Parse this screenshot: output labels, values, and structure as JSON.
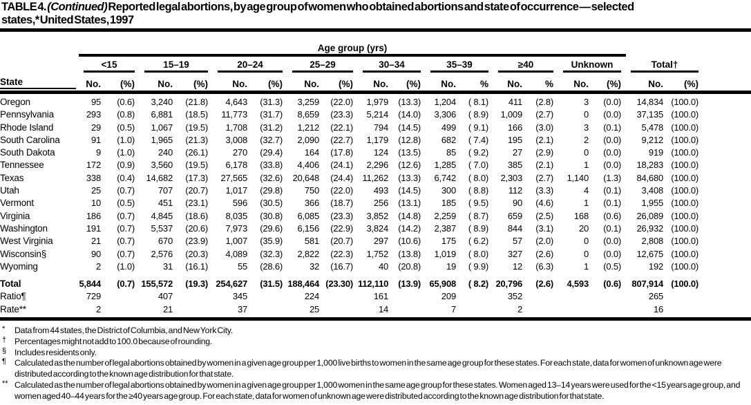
{
  "title": {
    "prefix": "TABLE 4. ",
    "continued": "(Continued)",
    "rest": " Reported legal abortions, by age group of women who obtained abortions and state of occurrence — selected",
    "line2": "states,* United States, 1997"
  },
  "table": {
    "header": {
      "age_group_label": "Age group (yrs)",
      "state_col": "State",
      "groups": [
        {
          "label": "<15",
          "no": "No.",
          "pct": "(%)"
        },
        {
          "label": "15–19",
          "no": "No.",
          "pct": "(%)"
        },
        {
          "label": "20–24",
          "no": "No.",
          "pct": "(%)"
        },
        {
          "label": "25–29",
          "no": "No.",
          "pct": "(%)"
        },
        {
          "label": "30–34",
          "no": "No.",
          "pct": "(%)"
        },
        {
          "label": "35–39",
          "no": "No.",
          "pct": "%"
        },
        {
          "label": "≥40",
          "no": "No.",
          "pct": "%"
        },
        {
          "label": "Unknown",
          "no": "No.",
          "pct": "(%)"
        },
        {
          "label": "Total†",
          "no": "No.",
          "pct": "(%)"
        }
      ]
    },
    "rows": [
      {
        "state": "Oregon",
        "cells": [
          "95",
          "(0.6)",
          "3,240",
          "(21.8)",
          "4,643",
          "(31.3)",
          "3,259",
          "(22.0)",
          "1,979",
          "(13.3)",
          "1,204",
          "( 8.1)",
          "411",
          "(2.8)",
          "3",
          "(0.0)",
          "14,834",
          "(100.0)"
        ]
      },
      {
        "state": "Pennsylvania",
        "cells": [
          "293",
          "(0.8)",
          "6,881",
          "(18.5)",
          "11,773",
          "(31.7)",
          "8,659",
          "(23.3)",
          "5,214",
          "(14.0)",
          "3,306",
          "( 8.9)",
          "1,009",
          "(2.7)",
          "0",
          "(0.0)",
          "37,135",
          "(100.0)"
        ]
      },
      {
        "state": "Rhode Island",
        "cells": [
          "29",
          "(0.5)",
          "1,067",
          "(19.5)",
          "1,708",
          "(31.2)",
          "1,212",
          "(22.1)",
          "794",
          "(14.5)",
          "499",
          "( 9.1)",
          "166",
          "(3.0)",
          "3",
          "(0.1)",
          "5,478",
          "(100.0)"
        ]
      },
      {
        "state": "South Carolina",
        "cells": [
          "91",
          "(1.0)",
          "1,965",
          "(21.3)",
          "3,008",
          "(32.7)",
          "2,090",
          "(22.7)",
          "1,179",
          "(12.8)",
          "682",
          "( 7.4)",
          "195",
          "(2.1)",
          "2",
          "(0.0)",
          "9,212",
          "(100.0)"
        ]
      },
      {
        "state": "South Dakota",
        "cells": [
          "9",
          "(1.0)",
          "240",
          "(26.1)",
          "270",
          "(29.4)",
          "164",
          "(17.8)",
          "124",
          "(13.5)",
          "85",
          "( 9.2)",
          "27",
          "(2.9)",
          "0",
          "(0.0)",
          "919",
          "(100.0)"
        ]
      },
      {
        "state": "Tennessee",
        "cells": [
          "172",
          "(0.9)",
          "3,560",
          "(19.5)",
          "6,178",
          "(33.8)",
          "4,406",
          "(24.1)",
          "2,296",
          "(12.6)",
          "1,285",
          "( 7.0)",
          "385",
          "(2.1)",
          "1",
          "(0.0)",
          "18,283",
          "(100.0)"
        ]
      },
      {
        "state": "Texas",
        "cells": [
          "338",
          "(0.4)",
          "14,682",
          "(17.3)",
          "27,565",
          "(32.6)",
          "20,648",
          "(24.4)",
          "11,262",
          "(13.3)",
          "6,742",
          "( 8.0)",
          "2,303",
          "(2.7)",
          "1,140",
          "(1.3)",
          "84,680",
          "(100.0)"
        ]
      },
      {
        "state": "Utah",
        "cells": [
          "25",
          "(0.7)",
          "707",
          "(20.7)",
          "1,017",
          "(29.8)",
          "750",
          "(22.0)",
          "493",
          "(14.5)",
          "300",
          "( 8.8)",
          "112",
          "(3.3)",
          "4",
          "(0.1)",
          "3,408",
          "(100.0)"
        ]
      },
      {
        "state": "Vermont",
        "cells": [
          "10",
          "(0.5)",
          "451",
          "(23.1)",
          "596",
          "(30.5)",
          "366",
          "(18.7)",
          "256",
          "(13.1)",
          "185",
          "( 9.5)",
          "90",
          "(4.6)",
          "1",
          "(0.1)",
          "1,955",
          "(100.0)"
        ]
      },
      {
        "state": "Virginia",
        "cells": [
          "186",
          "(0.7)",
          "4,845",
          "(18.6)",
          "8,035",
          "(30.8)",
          "6,085",
          "(23.3)",
          "3,852",
          "(14.8)",
          "2,259",
          "( 8.7)",
          "659",
          "(2.5)",
          "168",
          "(0.6)",
          "26,089",
          "(100.0)"
        ]
      },
      {
        "state": "Washington",
        "cells": [
          "191",
          "(0.7)",
          "5,537",
          "(20.6)",
          "7,973",
          "(29.6)",
          "6,156",
          "(22.9)",
          "3,824",
          "(14.2)",
          "2,387",
          "( 8.9)",
          "844",
          "(3.1)",
          "20",
          "(0.1)",
          "26,932",
          "(100.0)"
        ]
      },
      {
        "state": "West Virginia",
        "cells": [
          "21",
          "(0.7)",
          "670",
          "(23.9)",
          "1,007",
          "(35.9)",
          "581",
          "(20.7)",
          "297",
          "(10.6)",
          "175",
          "( 6.2)",
          "57",
          "(2.0)",
          "0",
          "(0.0)",
          "2,808",
          "(100.0)"
        ]
      },
      {
        "state": "Wisconsin§",
        "cells": [
          "90",
          "(0.7)",
          "2,576",
          "(20.3)",
          "4,089",
          "(32.3)",
          "2,822",
          "(22.3)",
          "1,752",
          "(13.8)",
          "1,019",
          "( 8.0)",
          "327",
          "(2.6)",
          "0",
          "(0.0)",
          "12,675",
          "(100.0)"
        ]
      },
      {
        "state": "Wyoming",
        "cells": [
          "2",
          "(1.0)",
          "31",
          "(16.1)",
          "55",
          "(28.6)",
          "32",
          "(16.7)",
          "40",
          "(20.8)",
          "19",
          "( 9.9)",
          "12",
          "(6.3)",
          "1",
          "(0.5)",
          "192",
          "(100.0)"
        ]
      }
    ],
    "total_row": {
      "label": "Total",
      "cells": [
        "5,844",
        "(0.7)",
        "155,572",
        "(19.3)",
        "254,627",
        "(31.5)",
        "188,464",
        "(23.30)",
        "112,110",
        "(13.9)",
        "65,908",
        "( 8.2)",
        "20,796",
        "(2.6)",
        "4,593",
        "(0.6)",
        "807,914",
        "(100.0)"
      ]
    },
    "ratio_row": {
      "label": "Ratio¶",
      "cells": [
        "729",
        "",
        "407",
        "",
        "345",
        "",
        "224",
        "",
        "161",
        "",
        "209",
        "",
        "352",
        "",
        "",
        "",
        "265",
        ""
      ]
    },
    "rate_row": {
      "label": "Rate**",
      "cells": [
        "2",
        "",
        "21",
        "",
        "37",
        "",
        "25",
        "",
        "14",
        "",
        "7",
        "",
        "2",
        "",
        "",
        "",
        "16",
        ""
      ]
    }
  },
  "footnotes": [
    {
      "marker": "*",
      "text": "Data from 44 states, the District of Columbia, and New York City."
    },
    {
      "marker": "†",
      "text": "Percentages might not add to 100.0 because of rounding."
    },
    {
      "marker": "§",
      "text": "Includes residents only."
    },
    {
      "marker": "¶",
      "text": "Calculated as the number of legal abortions obtained by women in a given age group per 1,000 live births to women in the same age group for these states. For each state, data for women of unknown age were distributed according to the known age distribution for that state."
    },
    {
      "marker": "**",
      "text": "Calculated as the number of legal abortions obtained by women in a given age group per 1,000 women in the same age group for these states. Women aged 13–14 years were used for the <15 years age group, and women aged 40–44 years for the ≥40 years age group. For each state, data for women of unknown age were distributed according to the known age distribution for that state."
    }
  ]
}
